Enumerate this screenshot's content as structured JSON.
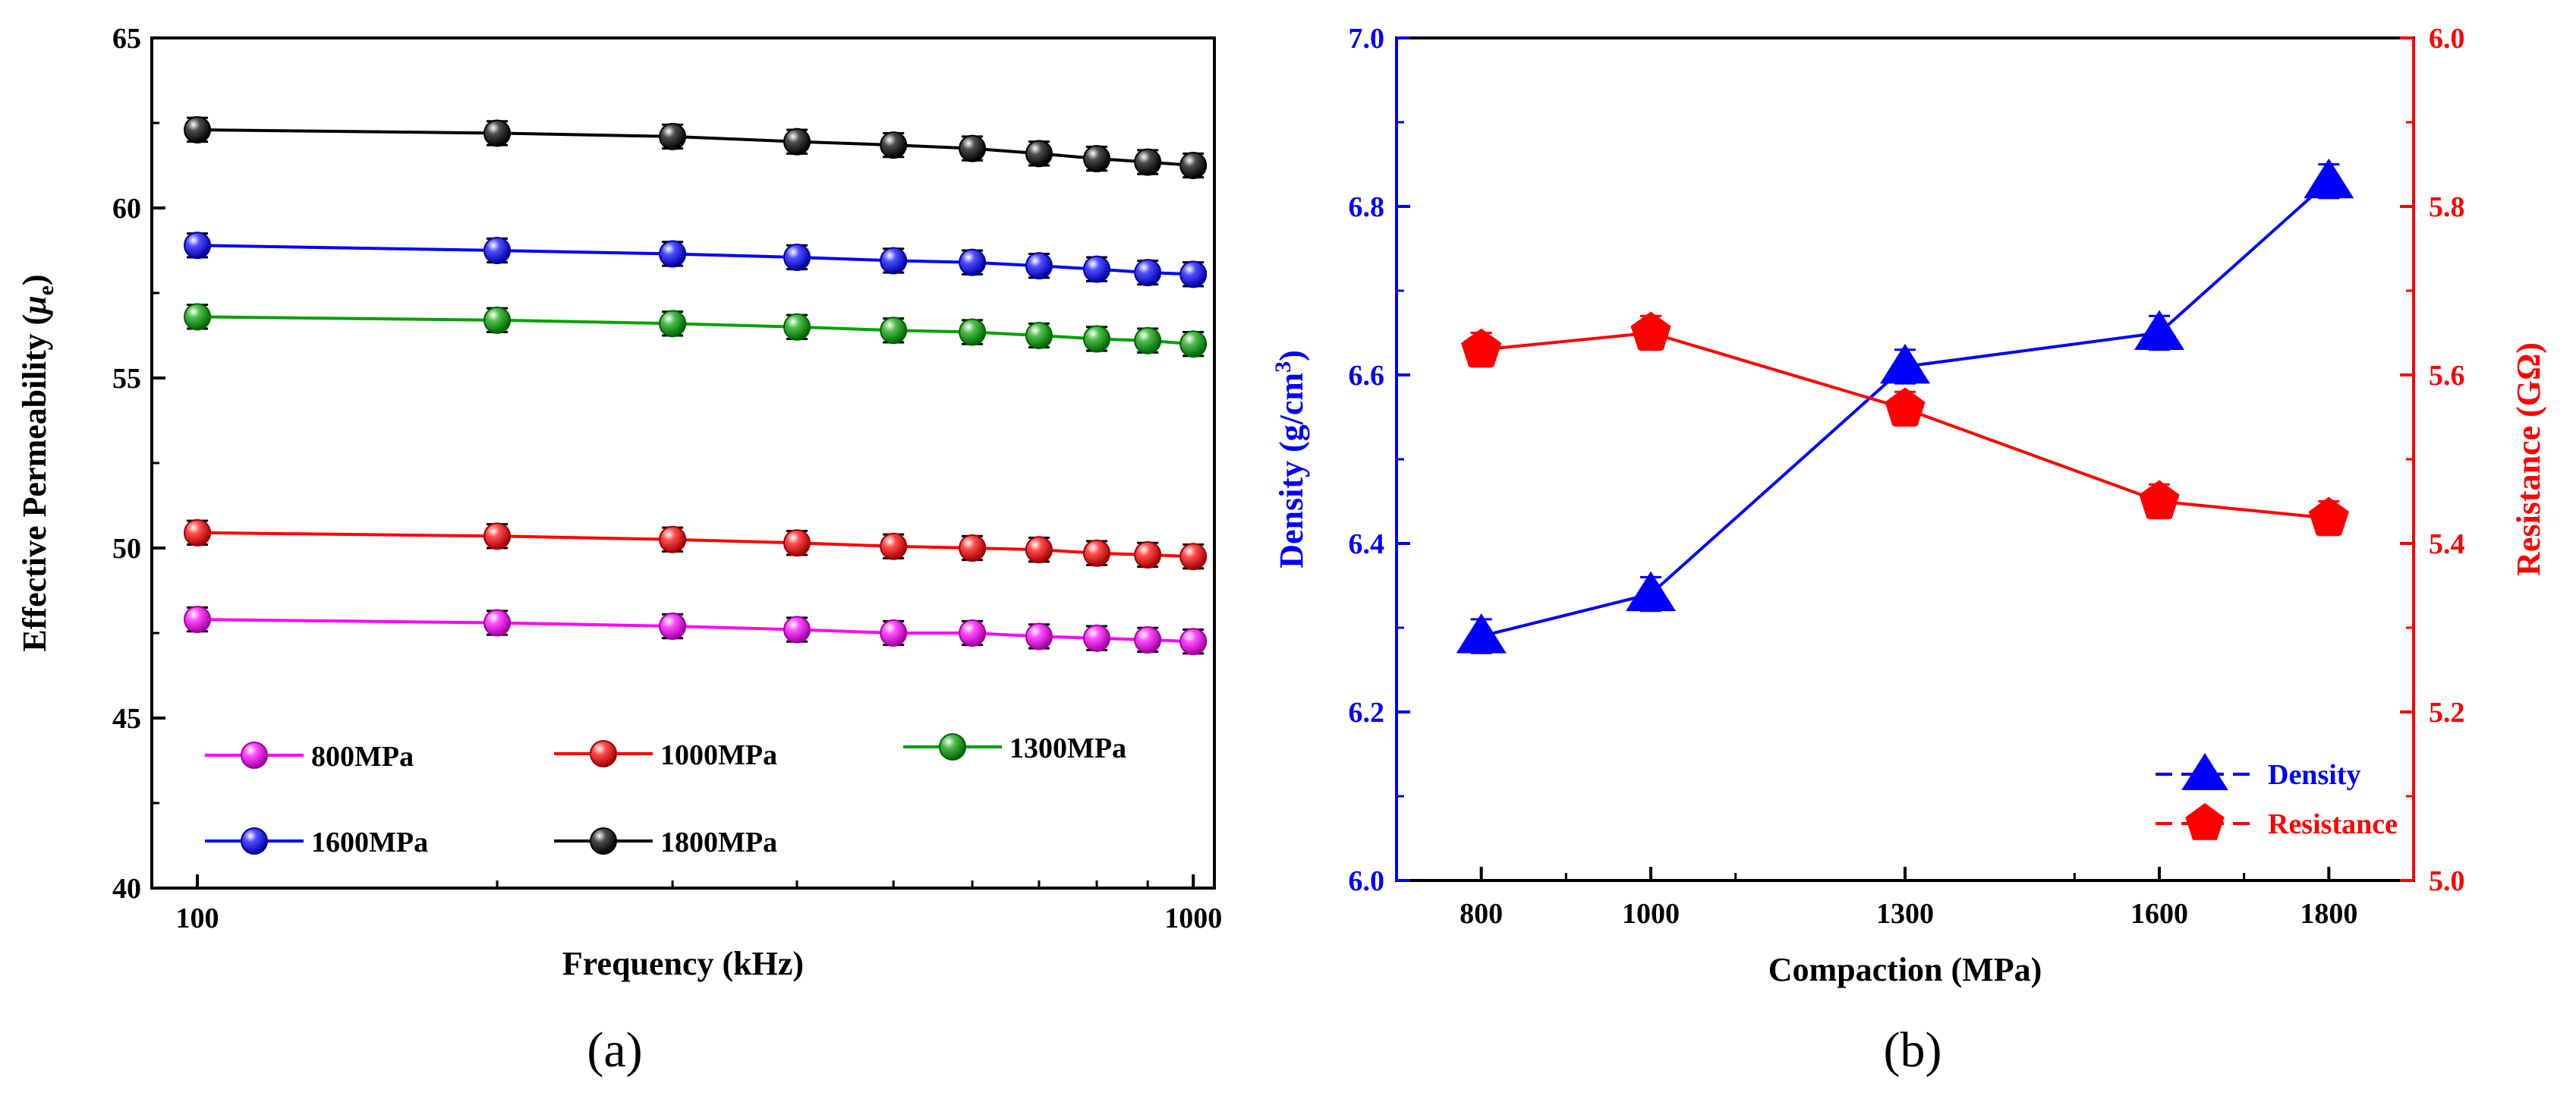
{
  "chart_data": [
    {
      "panel_label": "(a)",
      "type": "line",
      "xlabel": "Frequency (kHz)",
      "ylabel": "Effective Permeability (",
      "ylabel_symbol": "μ",
      "ylabel_subscript": "e",
      "ylabel_close": ")",
      "xscale": "log",
      "xlim": [
        90,
        1050
      ],
      "ylim": [
        40,
        65
      ],
      "xticks": [
        100,
        1000
      ],
      "xtick_labels": [
        "100",
        "1000"
      ],
      "yticks": [
        40,
        45,
        50,
        55,
        60,
        65
      ],
      "ytick_labels": [
        "40",
        "45",
        "50",
        "55",
        "60",
        "65"
      ],
      "x": [
        100,
        200,
        300,
        400,
        500,
        600,
        700,
        800,
        900,
        1000
      ],
      "series": [
        {
          "name": "800MPa",
          "color": "#ff00ff",
          "values": [
            47.9,
            47.8,
            47.7,
            47.6,
            47.5,
            47.5,
            47.4,
            47.35,
            47.3,
            47.25
          ]
        },
        {
          "name": "1000MPa",
          "color": "#ff0000",
          "values": [
            50.45,
            50.35,
            50.25,
            50.15,
            50.05,
            50.0,
            49.95,
            49.85,
            49.8,
            49.75
          ]
        },
        {
          "name": "1300MPa",
          "color": "#00a000",
          "values": [
            56.8,
            56.7,
            56.6,
            56.5,
            56.4,
            56.35,
            56.25,
            56.15,
            56.1,
            56.0
          ]
        },
        {
          "name": "1600MPa",
          "color": "#0000ff",
          "values": [
            58.9,
            58.75,
            58.65,
            58.55,
            58.45,
            58.4,
            58.3,
            58.2,
            58.1,
            58.05
          ]
        },
        {
          "name": "1800MPa",
          "color": "#000000",
          "values": [
            62.3,
            62.2,
            62.1,
            61.95,
            61.85,
            61.75,
            61.6,
            61.45,
            61.35,
            61.25
          ]
        }
      ],
      "error_bar": 0.35
    },
    {
      "panel_label": "(b)",
      "type": "line",
      "xlabel": "Compaction (MPa)",
      "categories": [
        "800",
        "1000",
        "1300",
        "1600",
        "1800"
      ],
      "x": [
        800,
        1000,
        1300,
        1600,
        1800
      ],
      "xlim": [
        700,
        1900
      ],
      "left_axis": {
        "label_prefix": "Density (g/cm",
        "label_sup": "3",
        "label_suffix": ")",
        "color": "#0000ff",
        "ylim": [
          6.0,
          7.0
        ],
        "ticks": [
          6.0,
          6.2,
          6.4,
          6.6,
          6.8,
          7.0
        ],
        "tick_labels": [
          "6.0",
          "6.2",
          "6.4",
          "6.6",
          "6.8",
          "7.0"
        ]
      },
      "right_axis": {
        "label": "Resistance (GΩ)",
        "color": "#ff0000",
        "ylim": [
          5.0,
          6.0
        ],
        "ticks": [
          5.0,
          5.2,
          5.4,
          5.6,
          5.8,
          6.0
        ],
        "tick_labels": [
          "5.0",
          "5.2",
          "5.4",
          "5.6",
          "5.8",
          "6.0"
        ]
      },
      "series": [
        {
          "name": "Density",
          "axis": "left",
          "color": "#0000ff",
          "marker": "triangle",
          "values": [
            6.29,
            6.34,
            6.61,
            6.65,
            6.83
          ],
          "error_bar": 0.02
        },
        {
          "name": "Resistance",
          "axis": "right",
          "color": "#ff0000",
          "marker": "pentagon",
          "values": [
            5.63,
            5.65,
            5.56,
            5.45,
            5.43
          ],
          "error_bar": 0.02
        }
      ],
      "legend": [
        "Density",
        "Resistance"
      ]
    }
  ]
}
